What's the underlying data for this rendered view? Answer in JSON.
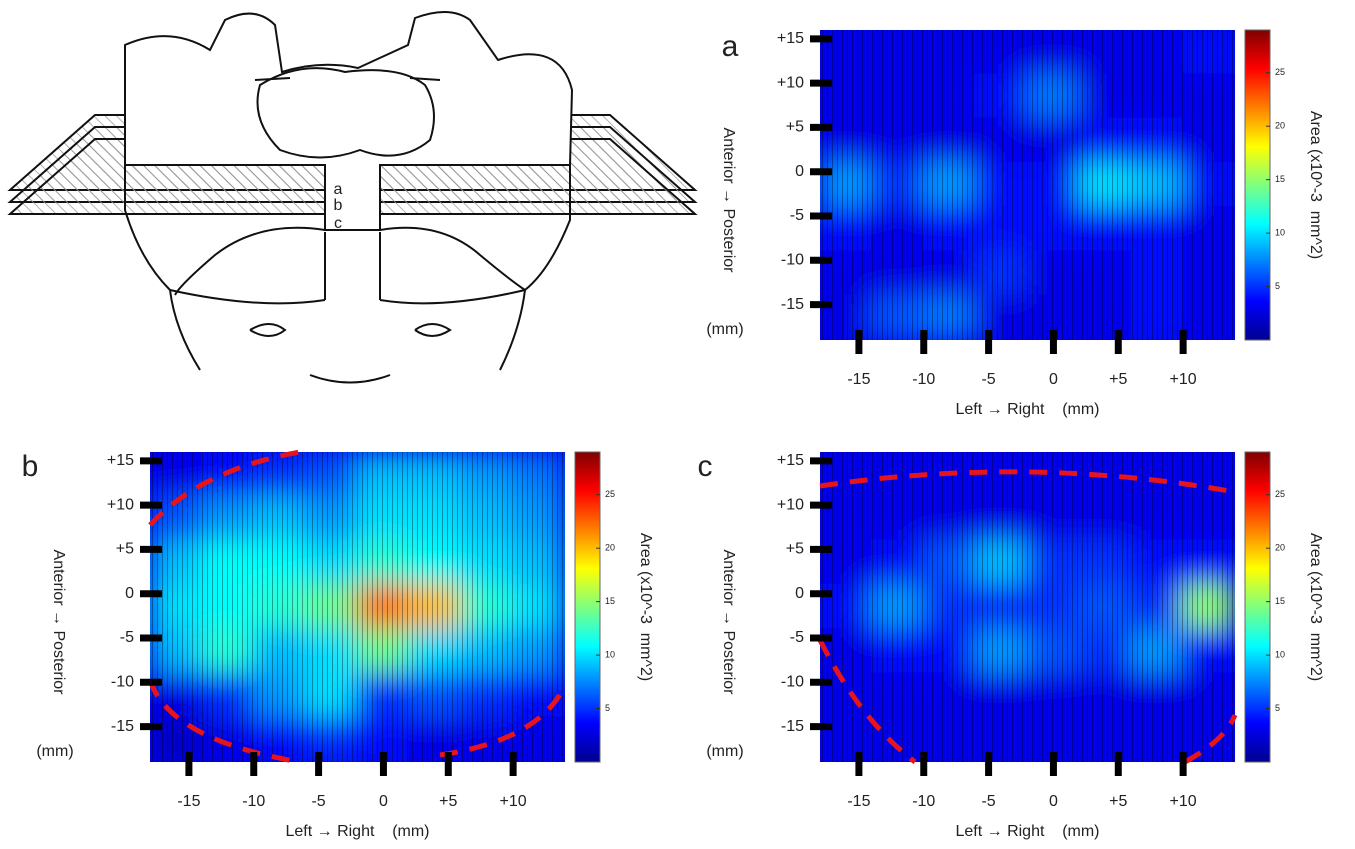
{
  "diagram": {
    "slice_labels": [
      "a",
      "b",
      "c"
    ]
  },
  "chart_data": [
    {
      "type": "heatmap",
      "panel_label": "a",
      "x_label": "Left → Right    (mm)",
      "y_label": "Anterior → Posterior",
      "y_unit": "(mm)",
      "colorbar_label": "Area (x10^-3  mm^2)",
      "colormap": "jet",
      "x": [
        -16,
        -12,
        -8,
        -4,
        0,
        4,
        8,
        12
      ],
      "y": [
        13.5,
        8.5,
        3.5,
        -1.5,
        -6.5,
        -11.5,
        -16.5
      ],
      "values": [
        [
          3,
          3,
          3,
          3,
          3,
          3,
          3,
          4
        ],
        [
          3,
          3,
          3,
          4,
          7,
          3,
          3,
          3
        ],
        [
          3,
          3,
          3,
          3,
          3,
          4,
          4,
          3
        ],
        [
          8,
          5,
          8,
          4,
          4,
          10,
          9,
          4
        ],
        [
          4,
          3,
          4,
          4,
          4,
          4,
          4,
          3
        ],
        [
          3,
          3,
          3,
          5,
          3,
          3,
          4,
          3
        ],
        [
          3,
          6,
          7,
          3,
          3,
          3,
          4,
          3
        ]
      ],
      "xlim": [
        -18,
        14
      ],
      "ylim": [
        -19,
        16
      ],
      "xticks": [
        -15,
        -10,
        -5,
        0,
        {
          "value": 5,
          "label": "+5"
        },
        {
          "value": 10,
          "label": "+10"
        }
      ],
      "yticks": [
        {
          "value": 15,
          "label": "+15"
        },
        {
          "value": 10,
          "label": "+10"
        },
        {
          "value": 5,
          "label": "+5"
        },
        0,
        -5,
        -10,
        -15
      ],
      "clim": [
        0,
        29
      ],
      "cticks": [
        5,
        10,
        15,
        20,
        25
      ]
    },
    {
      "type": "heatmap",
      "panel_label": "b",
      "x_label": "Left → Right    (mm)",
      "y_label": "Anterior → Posterior",
      "y_unit": "(mm)",
      "colorbar_label": "Area (x10^-3  mm^2)",
      "colormap": "jet",
      "x": [
        -16,
        -12,
        -8,
        -4,
        0,
        4,
        8,
        12
      ],
      "y": [
        13.5,
        8.5,
        3.5,
        -1.5,
        -6.5,
        -11.5,
        -16.5
      ],
      "values": [
        [
          3,
          4,
          5,
          6,
          9,
          9,
          8,
          7
        ],
        [
          6,
          8,
          9,
          8,
          10,
          10,
          9,
          8
        ],
        [
          9,
          11,
          11,
          10,
          12,
          11,
          10,
          9
        ],
        [
          10,
          11,
          12,
          14,
          22,
          20,
          12,
          10
        ],
        [
          9,
          12,
          9,
          10,
          14,
          10,
          9,
          8
        ],
        [
          3,
          5,
          8,
          10,
          5,
          6,
          5,
          4
        ],
        [
          2,
          3,
          4,
          5,
          4,
          3,
          3,
          3
        ]
      ],
      "xlim": [
        -18,
        14
      ],
      "ylim": [
        -19,
        16
      ],
      "xticks": [
        -15,
        -10,
        -5,
        0,
        {
          "value": 5,
          "label": "+5"
        },
        {
          "value": 10,
          "label": "+10"
        }
      ],
      "yticks": [
        {
          "value": 15,
          "label": "+15"
        },
        {
          "value": 10,
          "label": "+10"
        },
        {
          "value": 5,
          "label": "+5"
        },
        0,
        -5,
        -10,
        -15
      ],
      "clim": [
        0,
        29
      ],
      "cticks": [
        5,
        10,
        15,
        20,
        25
      ]
    },
    {
      "type": "heatmap",
      "panel_label": "c",
      "x_label": "Left → Right    (mm)",
      "y_label": "Anterior → Posterior",
      "y_unit": "(mm)",
      "colorbar_label": "Area (x10^-3  mm^2)",
      "colormap": "jet",
      "x": [
        -16,
        -12,
        -8,
        -4,
        0,
        4,
        8,
        12
      ],
      "y": [
        13.5,
        8.5,
        3.5,
        -1.5,
        -6.5,
        -11.5,
        -16.5
      ],
      "values": [
        [
          3,
          3,
          3,
          3,
          3,
          3,
          3,
          3
        ],
        [
          3,
          3,
          3,
          3,
          3,
          3,
          3,
          3
        ],
        [
          3,
          4,
          6,
          9,
          5,
          5,
          4,
          4
        ],
        [
          4,
          8,
          5,
          5,
          5,
          6,
          5,
          15
        ],
        [
          3,
          4,
          4,
          8,
          6,
          5,
          8,
          4
        ],
        [
          3,
          3,
          3,
          3,
          3,
          3,
          3,
          3
        ],
        [
          3,
          3,
          3,
          3,
          3,
          3,
          3,
          3
        ]
      ],
      "xlim": [
        -18,
        14
      ],
      "ylim": [
        -19,
        16
      ],
      "xticks": [
        -15,
        -10,
        -5,
        0,
        {
          "value": 5,
          "label": "+5"
        },
        {
          "value": 10,
          "label": "+10"
        }
      ],
      "yticks": [
        {
          "value": 15,
          "label": "+15"
        },
        {
          "value": 10,
          "label": "+10"
        },
        {
          "value": 5,
          "label": "+5"
        },
        0,
        -5,
        -10,
        -15
      ],
      "clim": [
        0,
        29
      ],
      "cticks": [
        5,
        10,
        15,
        20,
        25
      ]
    }
  ]
}
